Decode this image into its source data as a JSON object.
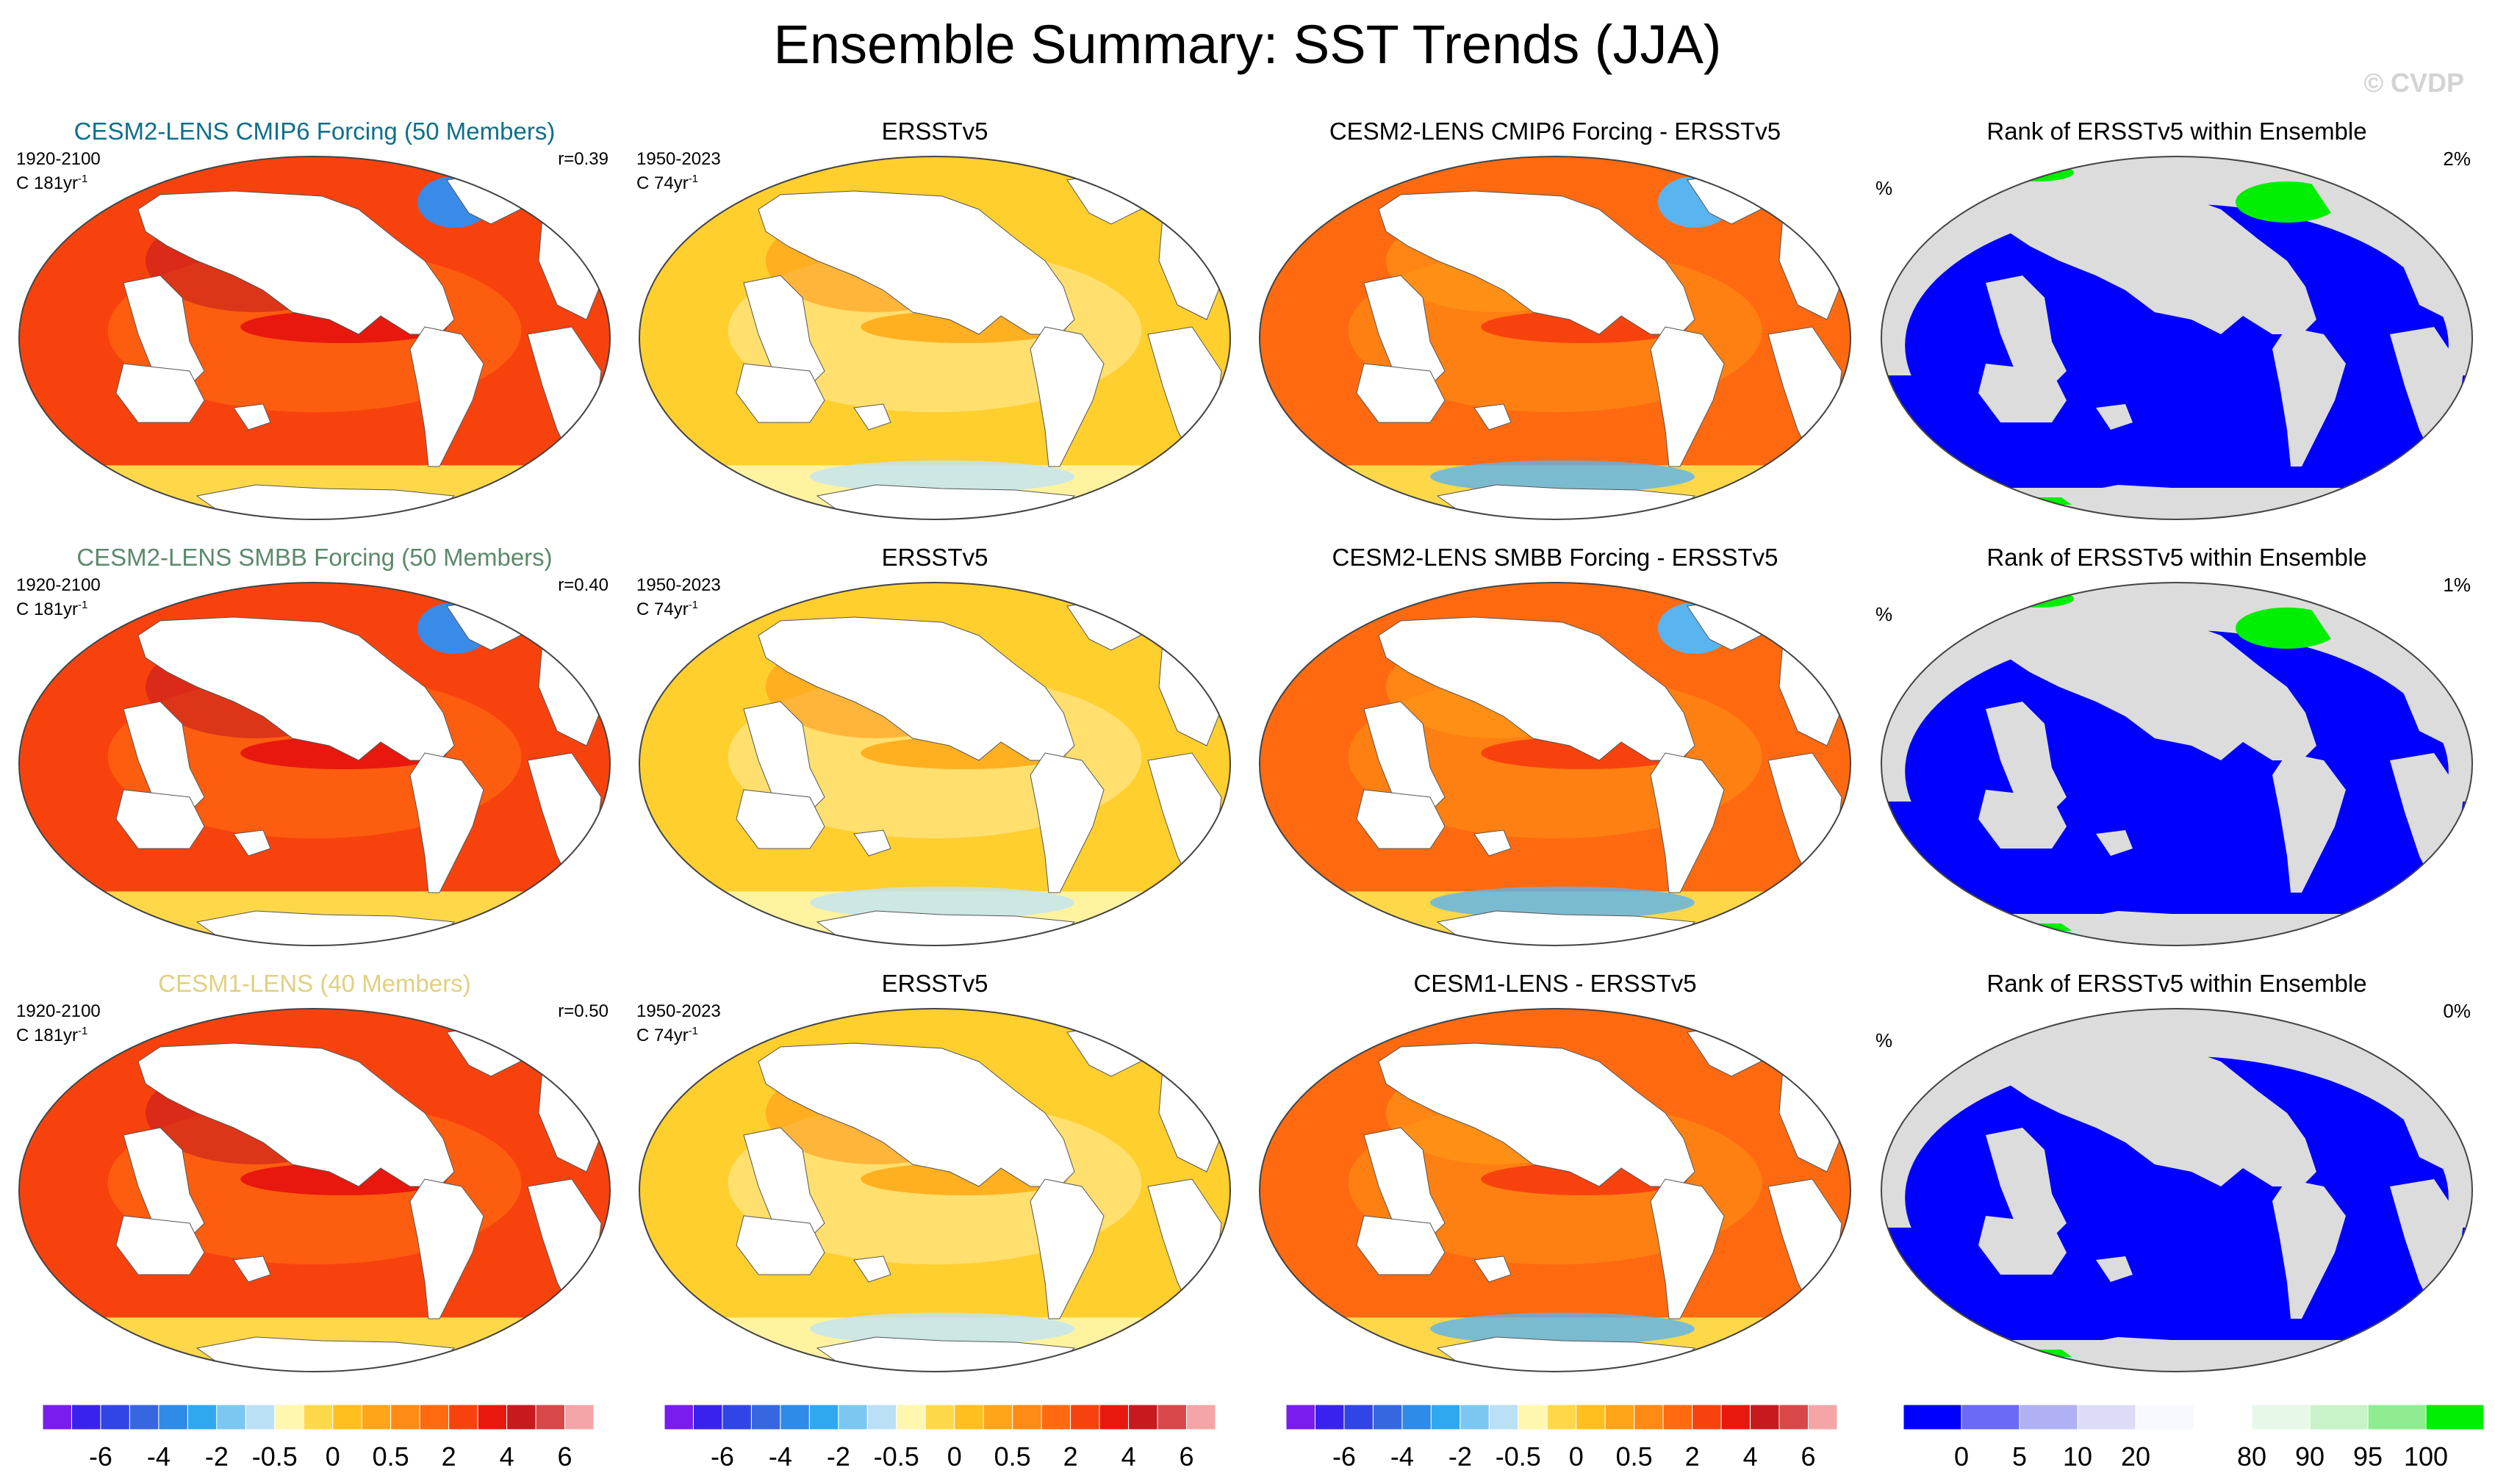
{
  "title": "Ensemble Summary: SST Trends (JJA)",
  "watermark": "© CVDP",
  "colors": {
    "land": "#ffffff",
    "rank_land": "#dcdcdc",
    "rank_low": "#0000ff",
    "rank_high": "#00ee00"
  },
  "rows": [
    {
      "model_title": "CESM2-LENS CMIP6 Forcing (50 Members)",
      "model_title_color": "#0e6f8c",
      "model_years": "1920-2100",
      "model_trend_text": "C 181yr",
      "model_corr": "r=0.39",
      "obs_title": "ERSSTv5",
      "obs_years": "1950-2023",
      "obs_trend_text": "C 74yr",
      "diff_title": "CESM2-LENS CMIP6 Forcing - ERSSTv5",
      "rank_title": "Rank of ERSSTv5 within Ensemble",
      "rank_unit": "%",
      "rank_pct": "2%",
      "trend_exponent": "-1"
    },
    {
      "model_title": "CESM2-LENS SMBB Forcing (50 Members)",
      "model_title_color": "#5a8a6a",
      "model_years": "1920-2100",
      "model_trend_text": "C 181yr",
      "model_corr": "r=0.40",
      "obs_title": "ERSSTv5",
      "obs_years": "1950-2023",
      "obs_trend_text": "C 74yr",
      "diff_title": "CESM2-LENS SMBB Forcing - ERSSTv5",
      "rank_title": "Rank of ERSSTv5 within Ensemble",
      "rank_unit": "%",
      "rank_pct": "1%",
      "trend_exponent": "-1"
    },
    {
      "model_title": "CESM1-LENS (40 Members)",
      "model_title_color": "#e0d080",
      "model_years": "1920-2100",
      "model_trend_text": "C 181yr",
      "model_corr": "r=0.50",
      "obs_title": "ERSSTv5",
      "obs_years": "1950-2023",
      "obs_trend_text": "C 74yr",
      "diff_title": "CESM1-LENS - ERSSTv5",
      "rank_title": "Rank of ERSSTv5 within Ensemble",
      "rank_unit": "%",
      "rank_pct": "0%",
      "trend_exponent": "-1"
    }
  ],
  "colorbars": {
    "trend": {
      "colors": [
        "#7a1cf0",
        "#3a22ee",
        "#2f45e6",
        "#3767e0",
        "#2f8ae8",
        "#30a8f0",
        "#7cc7f2",
        "#b9e0f5",
        "#fff7b0",
        "#ffd84a",
        "#ffbf1e",
        "#ffa51a",
        "#ff8a14",
        "#ff6a10",
        "#f8420e",
        "#e8180e",
        "#c81a1e",
        "#d84848",
        "#f4a6a6"
      ],
      "tick_labels": [
        "-6",
        "-4",
        "-2",
        "-0.5",
        "0",
        "0.5",
        "2",
        "4",
        "6"
      ]
    },
    "rank": {
      "colors": [
        "#0000ff",
        "#6a6af6",
        "#b0b0f4",
        "#dcdcf8",
        "#f8f8ff",
        "#ffffff",
        "#e8f8e8",
        "#c8f2c8",
        "#90ec90",
        "#00ee00"
      ],
      "tick_labels": [
        "0",
        "5",
        "10",
        "20",
        "80",
        "90",
        "95",
        "100"
      ]
    }
  }
}
